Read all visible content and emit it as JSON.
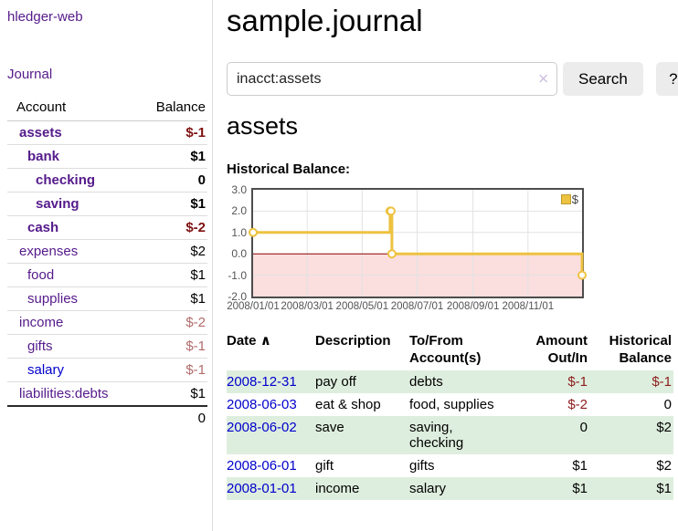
{
  "sidebar": {
    "app_title": "hledger-web",
    "nav": {
      "journal": "Journal"
    },
    "accounts_table": {
      "headers": {
        "account": "Account",
        "balance": "Balance"
      },
      "rows": [
        {
          "name": "assets",
          "depth": 1,
          "emph": true,
          "balance": "$-1",
          "bal_style": "neg-strong"
        },
        {
          "name": "bank",
          "depth": 2,
          "emph": true,
          "balance": "$1",
          "bal_style": "strong"
        },
        {
          "name": "checking",
          "depth": 3,
          "emph": true,
          "balance": "0",
          "bal_style": "strong"
        },
        {
          "name": "saving",
          "depth": 3,
          "emph": true,
          "balance": "$1",
          "bal_style": "strong"
        },
        {
          "name": "cash",
          "depth": 2,
          "emph": true,
          "balance": "$-2",
          "bal_style": "neg-strong"
        },
        {
          "name": "expenses",
          "depth": 1,
          "emph": false,
          "balance": "$2",
          "bal_style": "plain"
        },
        {
          "name": "food",
          "depth": 2,
          "emph": false,
          "balance": "$1",
          "bal_style": "plain"
        },
        {
          "name": "supplies",
          "depth": 2,
          "emph": false,
          "balance": "$1",
          "bal_style": "plain"
        },
        {
          "name": "income",
          "depth": 1,
          "emph": false,
          "balance": "$-2",
          "bal_style": "neg-soft"
        },
        {
          "name": "gifts",
          "depth": 2,
          "emph": false,
          "balance": "$-1",
          "bal_style": "neg-soft"
        },
        {
          "name": "salary",
          "depth": 2,
          "emph": false,
          "link_color": "blue",
          "balance": "$-1",
          "bal_style": "neg-soft"
        },
        {
          "name": "liabilities:debts",
          "depth": 1,
          "emph": false,
          "balance": "$1",
          "bal_style": "plain"
        }
      ],
      "total": "0"
    }
  },
  "main": {
    "title": "sample.journal",
    "search": {
      "value": "inacct:assets",
      "clear_icon": "✕",
      "button": "Search",
      "help": "?"
    },
    "account_heading": "assets",
    "chart_label": "Historical Balance:"
  },
  "chart_data": {
    "type": "line",
    "mode": "step-after",
    "title": "Historical Balance:",
    "series": [
      {
        "name": "$",
        "color": "#edc240",
        "points": [
          [
            "2008-01-01",
            1
          ],
          [
            "2008-06-01",
            2
          ],
          [
            "2008-06-02",
            2
          ],
          [
            "2008-06-03",
            0
          ],
          [
            "2008-12-31",
            -1
          ]
        ]
      }
    ],
    "x_range": [
      "2008-01-01",
      "2008-12-31"
    ],
    "ylim": [
      -2,
      3
    ],
    "y_ticks": [
      3.0,
      2.0,
      1.0,
      0.0,
      -1.0,
      -2.0
    ],
    "y_tick_labels": [
      "3.0",
      "2.0",
      "1.0",
      "0.0",
      "-1.0",
      "-2.0"
    ],
    "x_ticks": [
      {
        "date": "2008-01-01",
        "label": "2008/01/01"
      },
      {
        "date": "2008-03-01",
        "label": "2008/03/01"
      },
      {
        "date": "2008-05-01",
        "label": "2008/05/01"
      },
      {
        "date": "2008-07-01",
        "label": "2008/07/01"
      },
      {
        "date": "2008-09-01",
        "label": "2008/09/01"
      },
      {
        "date": "2008-11-01",
        "label": "2008/11/01"
      }
    ],
    "legend": {
      "label": "$",
      "swatch_color": "#edc240",
      "position": "top-right"
    },
    "grid": true,
    "grid_color": "#e2e2e2",
    "border_color": "#4d4d4d",
    "zero_line_color": "#8b0000",
    "negative_fill": "#fbdede",
    "point_fill": "#ffffff"
  },
  "register": {
    "headers": {
      "date": "Date",
      "sort_icon": "∧",
      "description": "Description",
      "account": "To/From Account(s)",
      "amount": "Amount Out/In",
      "balance": "Historical Balance"
    },
    "rows": [
      {
        "date": "2008-12-31",
        "description": "pay off",
        "accounts": "debts",
        "amount": "$-1",
        "amount_neg": true,
        "balance": "$-1",
        "balance_neg": true
      },
      {
        "date": "2008-06-03",
        "description": "eat & shop",
        "accounts": "food, supplies",
        "amount": "$-2",
        "amount_neg": true,
        "balance": "0",
        "balance_neg": false
      },
      {
        "date": "2008-06-02",
        "description": "save",
        "accounts": "saving, checking",
        "amount": "0",
        "amount_neg": false,
        "balance": "$2",
        "balance_neg": false
      },
      {
        "date": "2008-06-01",
        "description": "gift",
        "accounts": "gifts",
        "amount": "$1",
        "amount_neg": false,
        "balance": "$2",
        "balance_neg": false
      },
      {
        "date": "2008-01-01",
        "description": "income",
        "accounts": "salary",
        "amount": "$1",
        "amount_neg": false,
        "balance": "$1",
        "balance_neg": false
      }
    ]
  }
}
